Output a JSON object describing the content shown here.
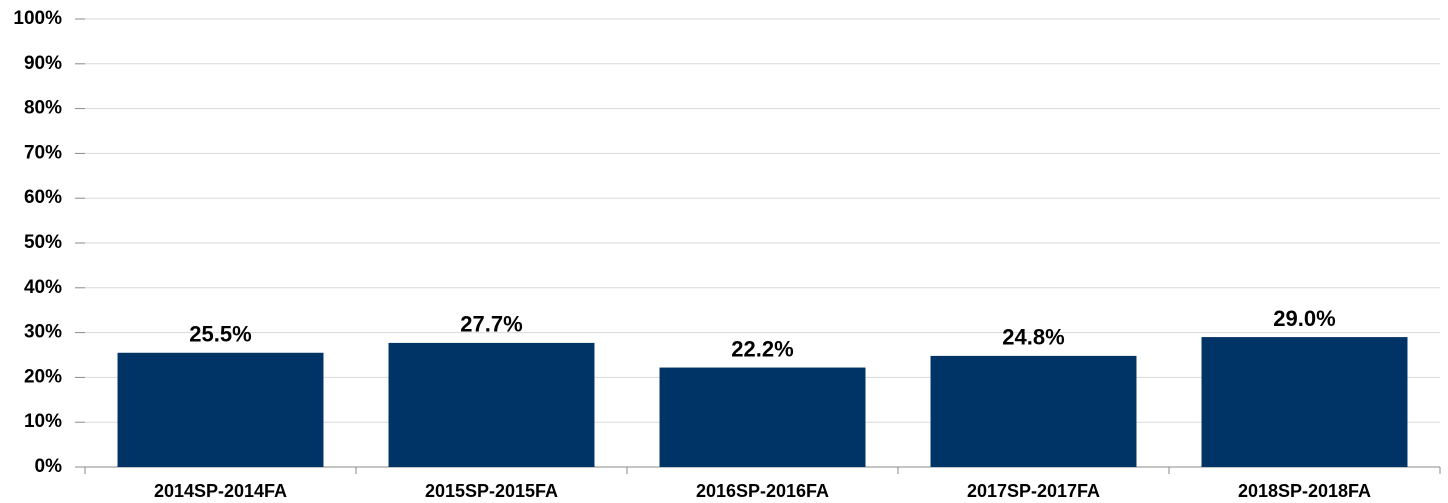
{
  "chart_data": {
    "type": "bar",
    "categories": [
      "2014SP-2014FA",
      "2015SP-2015FA",
      "2016SP-2016FA",
      "2017SP-2017FA",
      "2018SP-2018FA"
    ],
    "values": [
      25.5,
      27.7,
      22.2,
      24.8,
      29.0
    ],
    "value_labels": [
      "25.5%",
      "27.7%",
      "22.2%",
      "24.8%",
      "29.0%"
    ],
    "color": "#003366",
    "ylim": [
      0,
      100
    ],
    "yticks": [
      {
        "value": 0,
        "label": "0%"
      },
      {
        "value": 10,
        "label": "10%"
      },
      {
        "value": 20,
        "label": "20%"
      },
      {
        "value": 30,
        "label": "30%"
      },
      {
        "value": 40,
        "label": "40%"
      },
      {
        "value": 50,
        "label": "50%"
      },
      {
        "value": 60,
        "label": "60%"
      },
      {
        "value": 70,
        "label": "70%"
      },
      {
        "value": 80,
        "label": "80%"
      },
      {
        "value": 90,
        "label": "90%"
      },
      {
        "value": 100,
        "label": "100%"
      }
    ],
    "grid": true
  }
}
